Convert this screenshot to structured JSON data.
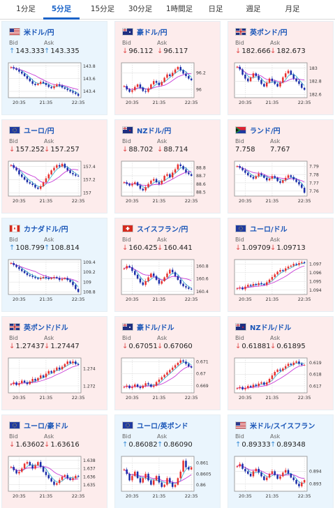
{
  "tabs": [
    "1分足",
    "5分足",
    "15分足",
    "30分足",
    "1時間足",
    "日足",
    "週足",
    "月足"
  ],
  "active_tab": "5分足",
  "labels": {
    "bid": "Bid",
    "ask": "Ask"
  },
  "colors": {
    "up_candle": "#e8302e",
    "down_candle": "#1a2ca8",
    "ma_fast": "#29a9c9",
    "ma_slow": "#c738d6",
    "up_arrow": "#3a8fd8",
    "down_arrow": "#e04848"
  },
  "pairs": [
    {
      "name": "米ドル/円",
      "flag": "us",
      "trend": "up",
      "bid": "143.333",
      "ask": "143.335",
      "yticks": [
        "143.8",
        "143.6",
        "143.4"
      ]
    },
    {
      "name": "豪ドル/円",
      "flag": "au",
      "trend": "down",
      "bid": "96.112",
      "ask": "96.117",
      "yticks": [
        "96.2",
        "96"
      ]
    },
    {
      "name": "英ポンド/円",
      "flag": "uk",
      "trend": "down",
      "bid": "182.666",
      "ask": "182.673",
      "yticks": [
        "183",
        "182.8",
        "182.6"
      ]
    },
    {
      "name": "ユーロ/円",
      "flag": "eu",
      "trend": "down",
      "bid": "157.252",
      "ask": "157.257",
      "yticks": [
        "157.4",
        "157.2",
        "157"
      ]
    },
    {
      "name": "NZドル/円",
      "flag": "nz",
      "trend": "down",
      "bid": "88.702",
      "ask": "88.714",
      "yticks": [
        "88.8",
        "88.7",
        "88.6",
        "88.5"
      ]
    },
    {
      "name": "ランド/円",
      "flag": "za",
      "trend": "none",
      "bid": "7.758",
      "ask": "7.767",
      "yticks": [
        "7.79",
        "7.78",
        "7.77",
        "7.76"
      ]
    },
    {
      "name": "カナダドル/円",
      "flag": "ca",
      "trend": "up",
      "bid": "108.799",
      "ask": "108.814",
      "yticks": [
        "109.4",
        "109.2",
        "109",
        "108.8"
      ]
    },
    {
      "name": "スイスフラン/円",
      "flag": "ch",
      "trend": "down",
      "bid": "160.425",
      "ask": "160.441",
      "yticks": [
        "160.8",
        "160.6",
        "160.4"
      ]
    },
    {
      "name": "ユーロ/ドル",
      "flag": "eu",
      "trend": "down",
      "bid": "1.09709",
      "ask": "1.09713",
      "yticks": [
        "1.097",
        "1.096",
        "1.095",
        "1.094"
      ]
    },
    {
      "name": "英ポンド/ドル",
      "flag": "uk",
      "trend": "down",
      "bid": "1.27437",
      "ask": "1.27447",
      "yticks": [
        "1.274",
        "1.272"
      ]
    },
    {
      "name": "豪ドル/ドル",
      "flag": "au",
      "trend": "down",
      "bid": "0.67051",
      "ask": "0.67060",
      "yticks": [
        "0.671",
        "0.67",
        "0.669"
      ]
    },
    {
      "name": "NZドル/ドル",
      "flag": "nz",
      "trend": "down",
      "bid": "0.61881",
      "ask": "0.61895",
      "yticks": [
        "0.619",
        "0.618",
        "0.617"
      ]
    },
    {
      "name": "ユーロ/豪ドル",
      "flag": "eu",
      "trend": "down",
      "bid": "1.63602",
      "ask": "1.63616",
      "yticks": [
        "1.638",
        "1.637",
        "1.636",
        "1.635"
      ]
    },
    {
      "name": "ユーロ/英ポンド",
      "flag": "eu",
      "trend": "up",
      "bid": "0.86082",
      "ask": "0.86090",
      "yticks": [
        "0.861",
        "0.8605",
        "0.86"
      ]
    },
    {
      "name": "米ドル/スイスフラン",
      "flag": "us",
      "trend": "up",
      "bid": "0.89333",
      "ask": "0.89348",
      "yticks": [
        "0.894",
        "0.893"
      ]
    }
  ],
  "chart_data": [
    {
      "type": "candlestick",
      "title": "米ドル/円",
      "x_ticks": [
        "20:35",
        "21:35",
        "22:35"
      ],
      "ylim": [
        143.3,
        143.85
      ],
      "close": [
        143.78,
        143.76,
        143.74,
        143.71,
        143.68,
        143.64,
        143.6,
        143.56,
        143.52,
        143.5,
        143.52,
        143.55,
        143.53,
        143.5,
        143.47,
        143.45,
        143.48,
        143.51,
        143.49,
        143.46,
        143.44,
        143.42,
        143.4,
        143.38,
        143.36,
        143.33
      ]
    },
    {
      "type": "candlestick",
      "title": "豪ドル/円",
      "x_ticks": [
        "20:35",
        "21:35",
        "22:35"
      ],
      "ylim": [
        95.9,
        96.32
      ],
      "close": [
        96.04,
        96.0,
        95.97,
        95.99,
        96.03,
        96.06,
        96.02,
        95.98,
        95.97,
        96.01,
        96.06,
        96.1,
        96.08,
        96.05,
        96.09,
        96.14,
        96.18,
        96.16,
        96.2,
        96.24,
        96.27,
        96.23,
        96.19,
        96.16,
        96.13,
        96.11
      ]
    },
    {
      "type": "candlestick",
      "title": "英ポンド/円",
      "x_ticks": [
        "20:35",
        "21:35",
        "22:35"
      ],
      "ylim": [
        182.55,
        183.08
      ],
      "close": [
        183.02,
        182.98,
        182.9,
        182.84,
        182.8,
        182.86,
        182.92,
        182.88,
        182.82,
        182.76,
        182.72,
        182.78,
        182.84,
        182.8,
        182.76,
        182.72,
        182.78,
        182.86,
        182.92,
        182.96,
        182.9,
        182.84,
        182.8,
        182.76,
        182.7,
        182.67
      ]
    },
    {
      "type": "candlestick",
      "title": "ユーロ/円",
      "x_ticks": [
        "20:35",
        "21:35",
        "22:35"
      ],
      "ylim": [
        156.95,
        157.48
      ],
      "close": [
        157.42,
        157.38,
        157.34,
        157.28,
        157.24,
        157.2,
        157.16,
        157.14,
        157.12,
        157.08,
        157.06,
        157.1,
        157.16,
        157.22,
        157.28,
        157.34,
        157.38,
        157.42,
        157.4,
        157.44,
        157.38,
        157.34,
        157.3,
        157.28,
        157.26,
        157.25
      ]
    },
    {
      "type": "candlestick",
      "title": "NZドル/円",
      "x_ticks": [
        "20:35",
        "21:35",
        "22:35"
      ],
      "ylim": [
        88.45,
        88.88
      ],
      "close": [
        88.62,
        88.6,
        88.58,
        88.6,
        88.62,
        88.58,
        88.54,
        88.52,
        88.56,
        88.6,
        88.64,
        88.66,
        88.62,
        88.6,
        88.64,
        88.7,
        88.72,
        88.68,
        88.74,
        88.78,
        88.84,
        88.82,
        88.78,
        88.74,
        88.72,
        88.7
      ]
    },
    {
      "type": "candlestick",
      "title": "ランド/円",
      "x_ticks": [
        "20:35",
        "21:35",
        "22:35"
      ],
      "ylim": [
        7.754,
        7.796
      ],
      "close": [
        7.79,
        7.788,
        7.785,
        7.782,
        7.779,
        7.777,
        7.775,
        7.778,
        7.781,
        7.779,
        7.776,
        7.773,
        7.775,
        7.778,
        7.776,
        7.772,
        7.77,
        7.773,
        7.776,
        7.779,
        7.777,
        7.774,
        7.771,
        7.768,
        7.764,
        7.758
      ]
    },
    {
      "type": "candlestick",
      "title": "カナダドル/円",
      "x_ticks": [
        "20:35",
        "21:35",
        "22:35"
      ],
      "ylim": [
        108.75,
        109.45
      ],
      "close": [
        109.38,
        109.34,
        109.3,
        109.26,
        109.22,
        109.18,
        109.14,
        109.12,
        109.1,
        109.08,
        109.06,
        109.08,
        109.1,
        109.08,
        109.06,
        109.08,
        109.1,
        109.08,
        109.04,
        109.06,
        109.08,
        109.04,
        109.0,
        108.94,
        108.86,
        108.8
      ]
    },
    {
      "type": "candlestick",
      "title": "スイスフラン/円",
      "x_ticks": [
        "20:35",
        "21:35",
        "22:35"
      ],
      "ylim": [
        160.35,
        160.9
      ],
      "close": [
        160.76,
        160.8,
        160.78,
        160.72,
        160.66,
        160.6,
        160.54,
        160.5,
        160.56,
        160.62,
        160.68,
        160.64,
        160.58,
        160.52,
        160.56,
        160.62,
        160.68,
        160.74,
        160.7,
        160.64,
        160.58,
        160.52,
        160.48,
        160.46,
        160.44,
        160.43
      ]
    },
    {
      "type": "candlestick",
      "title": "ユーロ/ドル",
      "x_ticks": [
        "20:35",
        "21:35",
        "22:35"
      ],
      "ylim": [
        1.0935,
        1.0975
      ],
      "close": [
        1.0942,
        1.0943,
        1.0941,
        1.0944,
        1.0946,
        1.0945,
        1.0947,
        1.0946,
        1.0948,
        1.0947,
        1.0946,
        1.0949,
        1.0952,
        1.0955,
        1.0958,
        1.0961,
        1.0963,
        1.0962,
        1.0965,
        1.0967,
        1.0968,
        1.097,
        1.0969,
        1.0971,
        1.0972,
        1.0971
      ]
    },
    {
      "type": "candlestick",
      "title": "英ポンド/ドル",
      "x_ticks": [
        "20:35",
        "21:35",
        "22:35"
      ],
      "ylim": [
        1.2712,
        1.2752
      ],
      "close": [
        1.2722,
        1.2724,
        1.2721,
        1.2723,
        1.2726,
        1.2724,
        1.2722,
        1.2725,
        1.2728,
        1.2726,
        1.2729,
        1.2732,
        1.273,
        1.2734,
        1.2737,
        1.2735,
        1.2738,
        1.2741,
        1.2739,
        1.2742,
        1.2745,
        1.2748,
        1.2746,
        1.2748,
        1.2745,
        1.2744
      ]
    },
    {
      "type": "candlestick",
      "title": "豪ドル/ドル",
      "x_ticks": [
        "20:35",
        "21:35",
        "22:35"
      ],
      "ylim": [
        0.6684,
        0.6713
      ],
      "close": [
        0.6689,
        0.669,
        0.6688,
        0.6689,
        0.6691,
        0.6689,
        0.6688,
        0.669,
        0.6692,
        0.6691,
        0.6689,
        0.669,
        0.6693,
        0.6695,
        0.6697,
        0.6699,
        0.6701,
        0.6703,
        0.6705,
        0.6707,
        0.6709,
        0.6711,
        0.671,
        0.6708,
        0.6706,
        0.6705
      ]
    },
    {
      "type": "candlestick",
      "title": "NZドル/ドル",
      "x_ticks": [
        "20:35",
        "21:35",
        "22:35"
      ],
      "ylim": [
        0.6164,
        0.6194
      ],
      "close": [
        0.6168,
        0.6169,
        0.6167,
        0.6168,
        0.617,
        0.6169,
        0.6171,
        0.617,
        0.6172,
        0.6173,
        0.6171,
        0.6173,
        0.6176,
        0.6179,
        0.6182,
        0.6184,
        0.6183,
        0.6185,
        0.6187,
        0.6189,
        0.6188,
        0.619,
        0.6191,
        0.6189,
        0.6188,
        0.6188
      ]
    },
    {
      "type": "candlestick",
      "title": "ユーロ/豪ドル",
      "x_ticks": [
        "20:35",
        "21:35",
        "22:35"
      ],
      "ylim": [
        1.6342,
        1.6385
      ],
      "close": [
        1.6372,
        1.6368,
        1.6364,
        1.6366,
        1.637,
        1.6376,
        1.6378,
        1.6374,
        1.637,
        1.6374,
        1.6378,
        1.6372,
        1.6366,
        1.6362,
        1.6358,
        1.6354,
        1.635,
        1.6352,
        1.6356,
        1.636,
        1.6362,
        1.6358,
        1.6356,
        1.6358,
        1.6361,
        1.636
      ]
    },
    {
      "type": "candlestick",
      "title": "ユーロ/英ポンド",
      "x_ticks": [
        "20:35",
        "21:35",
        "22:35"
      ],
      "ylim": [
        0.8597,
        0.8613
      ],
      "close": [
        0.8607,
        0.8605,
        0.8602,
        0.8604,
        0.8606,
        0.8603,
        0.8601,
        0.8603,
        0.8605,
        0.8602,
        0.86,
        0.8602,
        0.8604,
        0.8601,
        0.8599,
        0.86,
        0.8603,
        0.8601,
        0.8599,
        0.86,
        0.8603,
        0.8606,
        0.8611,
        0.8608,
        0.8607,
        0.8608
      ]
    },
    {
      "type": "candlestick",
      "title": "米ドル/スイスフラン",
      "x_ticks": [
        "20:35",
        "21:35",
        "22:35"
      ],
      "ylim": [
        0.8924,
        0.8952
      ],
      "close": [
        0.8944,
        0.8946,
        0.8942,
        0.894,
        0.8938,
        0.8936,
        0.894,
        0.8942,
        0.8939,
        0.8936,
        0.8933,
        0.8935,
        0.8938,
        0.894,
        0.8937,
        0.8934,
        0.8936,
        0.8939,
        0.8941,
        0.8938,
        0.8935,
        0.8933,
        0.893,
        0.8928,
        0.8931,
        0.8933
      ]
    }
  ]
}
